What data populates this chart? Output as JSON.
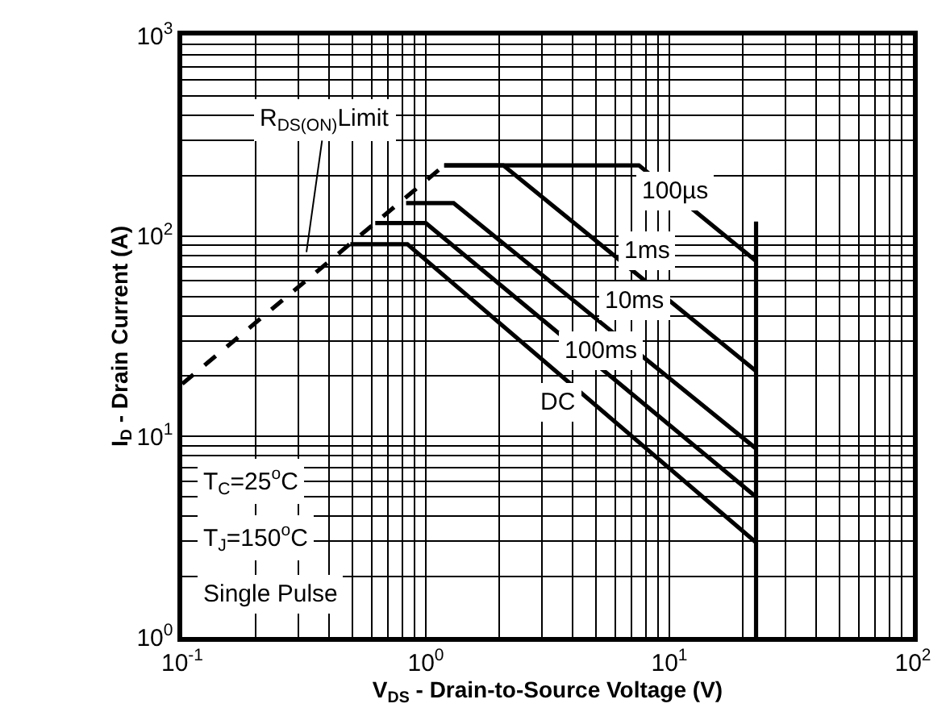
{
  "chart_data": {
    "type": "line",
    "xlabel": "V$_{DS}$ - Drain-to-Source Voltage (V)",
    "ylabel": "I$_{D}$ - Drain Current (A)",
    "log": "xy",
    "grid": true,
    "marker": "none",
    "xlim": [
      0.1,
      100
    ],
    "ylim": [
      1,
      1000
    ],
    "xticks": [
      {
        "value": 0.1,
        "label": "10$^{-1}$"
      },
      {
        "value": 1,
        "label": "10$^{0}$"
      },
      {
        "value": 10,
        "label": "10$^{1}$"
      },
      {
        "value": 100,
        "label": "10$^{2}$"
      }
    ],
    "yticks": [
      {
        "value": 1,
        "label": "10$^{0}$"
      },
      {
        "value": 10,
        "label": "10$^{1}$"
      },
      {
        "value": 100,
        "label": "10$^{2}$"
      },
      {
        "value": 1000,
        "label": "10$^{3}$"
      }
    ],
    "series": [
      {
        "color": "#000000",
        "line_style": "dashed",
        "x": [
          0.1,
          1.19
        ],
        "values": [
          18.3,
          225
        ]
      },
      {
        "color": "#000000",
        "line_style": "solid",
        "x": [
          1.19,
          7.5,
          22.7
        ],
        "values": [
          225,
          225,
          75
        ]
      },
      {
        "color": "#000000",
        "line_style": "solid",
        "x": [
          1.19,
          2.08,
          22.7
        ],
        "values": [
          225,
          225,
          21.2
        ]
      },
      {
        "color": "#000000",
        "line_style": "solid",
        "x": [
          0.83,
          1.3,
          22.7
        ],
        "values": [
          146,
          146,
          8.7
        ]
      },
      {
        "color": "#000000",
        "line_style": "solid",
        "x": [
          0.62,
          1.0,
          22.7
        ],
        "values": [
          116,
          116,
          5.0
        ]
      },
      {
        "color": "#000000",
        "line_style": "solid",
        "x": [
          0.49,
          0.84,
          22.7
        ],
        "values": [
          91,
          91,
          2.96
        ]
      },
      {
        "color": "#000000",
        "line_style": "solid",
        "x": [
          22.7,
          22.7
        ],
        "values": [
          118,
          1
        ]
      }
    ],
    "annotations": [
      "R$_{DS(ON)}$Limit",
      "100µs",
      "1ms",
      "10ms",
      "100ms",
      "DC",
      "T$_{C}$=25$^{o}$C",
      "T$_{J}$=150$^{o}$C",
      "Single Pulse"
    ]
  }
}
